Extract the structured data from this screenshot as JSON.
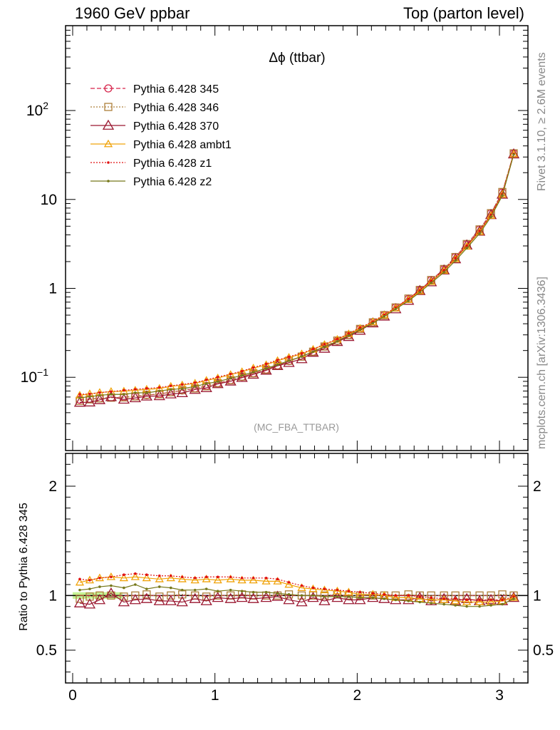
{
  "header": {
    "left": "1960 GeV ppbar",
    "right": "Top (parton level)"
  },
  "side_labels": {
    "rivet": "Rivet 3.1.10, ≥ 2.6M events",
    "mcplots": "mcplots.cern.ch [arXiv:1306.3436]"
  },
  "chart_data": [
    {
      "type": "line",
      "title": "Δϕ (ttbar)",
      "watermark": "(MC_FBA_TTBAR)",
      "xlim": [
        -0.05,
        3.2
      ],
      "ylim": [
        0.015,
        900
      ],
      "yscale": "log",
      "yticks": [
        {
          "v": 0.1,
          "base": "10",
          "exp": "−1"
        },
        {
          "v": 1,
          "base": "1",
          "exp": ""
        },
        {
          "v": 10,
          "base": "10",
          "exp": ""
        },
        {
          "v": 100,
          "base": "10",
          "exp": "2"
        }
      ],
      "legend_position": "top-left",
      "x": [
        0.05,
        0.12,
        0.19,
        0.27,
        0.36,
        0.44,
        0.52,
        0.61,
        0.69,
        0.77,
        0.86,
        0.94,
        1.02,
        1.11,
        1.19,
        1.27,
        1.36,
        1.44,
        1.52,
        1.61,
        1.69,
        1.77,
        1.86,
        1.94,
        2.02,
        2.11,
        2.19,
        2.27,
        2.36,
        2.44,
        2.52,
        2.61,
        2.69,
        2.77,
        2.86,
        2.94,
        3.02,
        3.1
      ],
      "base": [
        0.056,
        0.057,
        0.058,
        0.059,
        0.06,
        0.061,
        0.063,
        0.065,
        0.068,
        0.071,
        0.075,
        0.08,
        0.086,
        0.093,
        0.101,
        0.111,
        0.122,
        0.136,
        0.152,
        0.171,
        0.194,
        0.222,
        0.256,
        0.298,
        0.35,
        0.415,
        0.5,
        0.61,
        0.76,
        0.96,
        1.24,
        1.65,
        2.25,
        3.15,
        4.6,
        7.0,
        12.0,
        33.0
      ],
      "series": [
        {
          "name": "Pythia 6.428 345",
          "color": "#d6234a",
          "dash": "6,3",
          "marker": "circle"
        },
        {
          "name": "Pythia 6.428 346",
          "color": "#ad7f3a",
          "dash": "2,2",
          "marker": "square"
        },
        {
          "name": "Pythia 6.428 370",
          "color": "#9a1730",
          "dash": "",
          "marker": "triangle-big"
        },
        {
          "name": "Pythia 6.428 ambt1",
          "color": "#f0a30a",
          "dash": "",
          "marker": "triangle"
        },
        {
          "name": "Pythia 6.428 z1",
          "color": "#e01010",
          "dash": "2,2",
          "marker": "dot"
        },
        {
          "name": "Pythia 6.428 z2",
          "color": "#76781a",
          "dash": "",
          "marker": "dot"
        }
      ]
    },
    {
      "type": "line",
      "ylabel": "Ratio to Pythia 6.428 345",
      "xlim": [
        -0.05,
        3.2
      ],
      "ylim": [
        0.2,
        2.3
      ],
      "xticks": [
        0,
        1,
        2,
        3
      ],
      "yticks": [
        0.5,
        1,
        2
      ],
      "ratios": [
        [
          1,
          1,
          1,
          1,
          1,
          1,
          1,
          1,
          1,
          1,
          1,
          1,
          1,
          1,
          1,
          1,
          1,
          1,
          1,
          1,
          1,
          1,
          1,
          1,
          1,
          1,
          1,
          1,
          1,
          1,
          1,
          1,
          1,
          1,
          1,
          1,
          1,
          1
        ],
        [
          0.97,
          0.99,
          1.0,
          1.0,
          0.99,
          1.0,
          1.01,
          0.99,
          1.0,
          1.01,
          1.0,
          0.99,
          1.0,
          1.0,
          1.01,
          1.0,
          1.0,
          1.0,
          1.01,
          1.0,
          1.0,
          1.0,
          1.01,
          1.0,
          1.0,
          1.0,
          1.0,
          1.0,
          1.01,
          1.0,
          1.0,
          1.0,
          1.0,
          1.0,
          1.0,
          1.0,
          1.01,
          1.0
        ],
        [
          0.93,
          0.92,
          0.96,
          1.02,
          0.94,
          0.96,
          0.97,
          0.95,
          0.95,
          0.94,
          0.97,
          0.95,
          0.98,
          0.97,
          0.98,
          0.97,
          0.98,
          0.99,
          0.96,
          0.94,
          0.98,
          0.95,
          0.98,
          0.96,
          0.96,
          0.98,
          0.97,
          0.96,
          0.96,
          0.98,
          0.95,
          0.97,
          0.95,
          0.97,
          0.95,
          0.96,
          0.95,
          0.98
        ],
        [
          1.12,
          1.14,
          1.16,
          1.17,
          1.16,
          1.17,
          1.16,
          1.15,
          1.16,
          1.15,
          1.14,
          1.15,
          1.14,
          1.15,
          1.14,
          1.14,
          1.13,
          1.13,
          1.1,
          1.07,
          1.06,
          1.05,
          1.04,
          1.03,
          1.01,
          1.01,
          1.0,
          0.98,
          0.98,
          0.97,
          0.96,
          0.96,
          0.95,
          0.94,
          0.94,
          0.94,
          0.95,
          0.98
        ],
        [
          1.15,
          1.14,
          1.16,
          1.17,
          1.19,
          1.2,
          1.19,
          1.18,
          1.18,
          1.17,
          1.16,
          1.17,
          1.17,
          1.17,
          1.16,
          1.16,
          1.16,
          1.15,
          1.12,
          1.09,
          1.07,
          1.06,
          1.05,
          1.04,
          1.03,
          1.02,
          1.01,
          1.0,
          1.0,
          0.99,
          0.98,
          0.97,
          0.97,
          0.96,
          0.96,
          0.96,
          0.96,
          0.99
        ],
        [
          1.05,
          1.06,
          1.08,
          1.09,
          1.07,
          1.1,
          1.06,
          1.08,
          1.07,
          1.05,
          1.05,
          1.06,
          1.04,
          1.05,
          1.04,
          1.03,
          1.03,
          1.02,
          1.01,
          1.0,
          1.0,
          0.99,
          0.99,
          0.99,
          0.98,
          0.98,
          0.97,
          0.96,
          0.95,
          0.94,
          0.93,
          0.92,
          0.91,
          0.9,
          0.9,
          0.91,
          0.92,
          0.97
        ]
      ]
    }
  ]
}
